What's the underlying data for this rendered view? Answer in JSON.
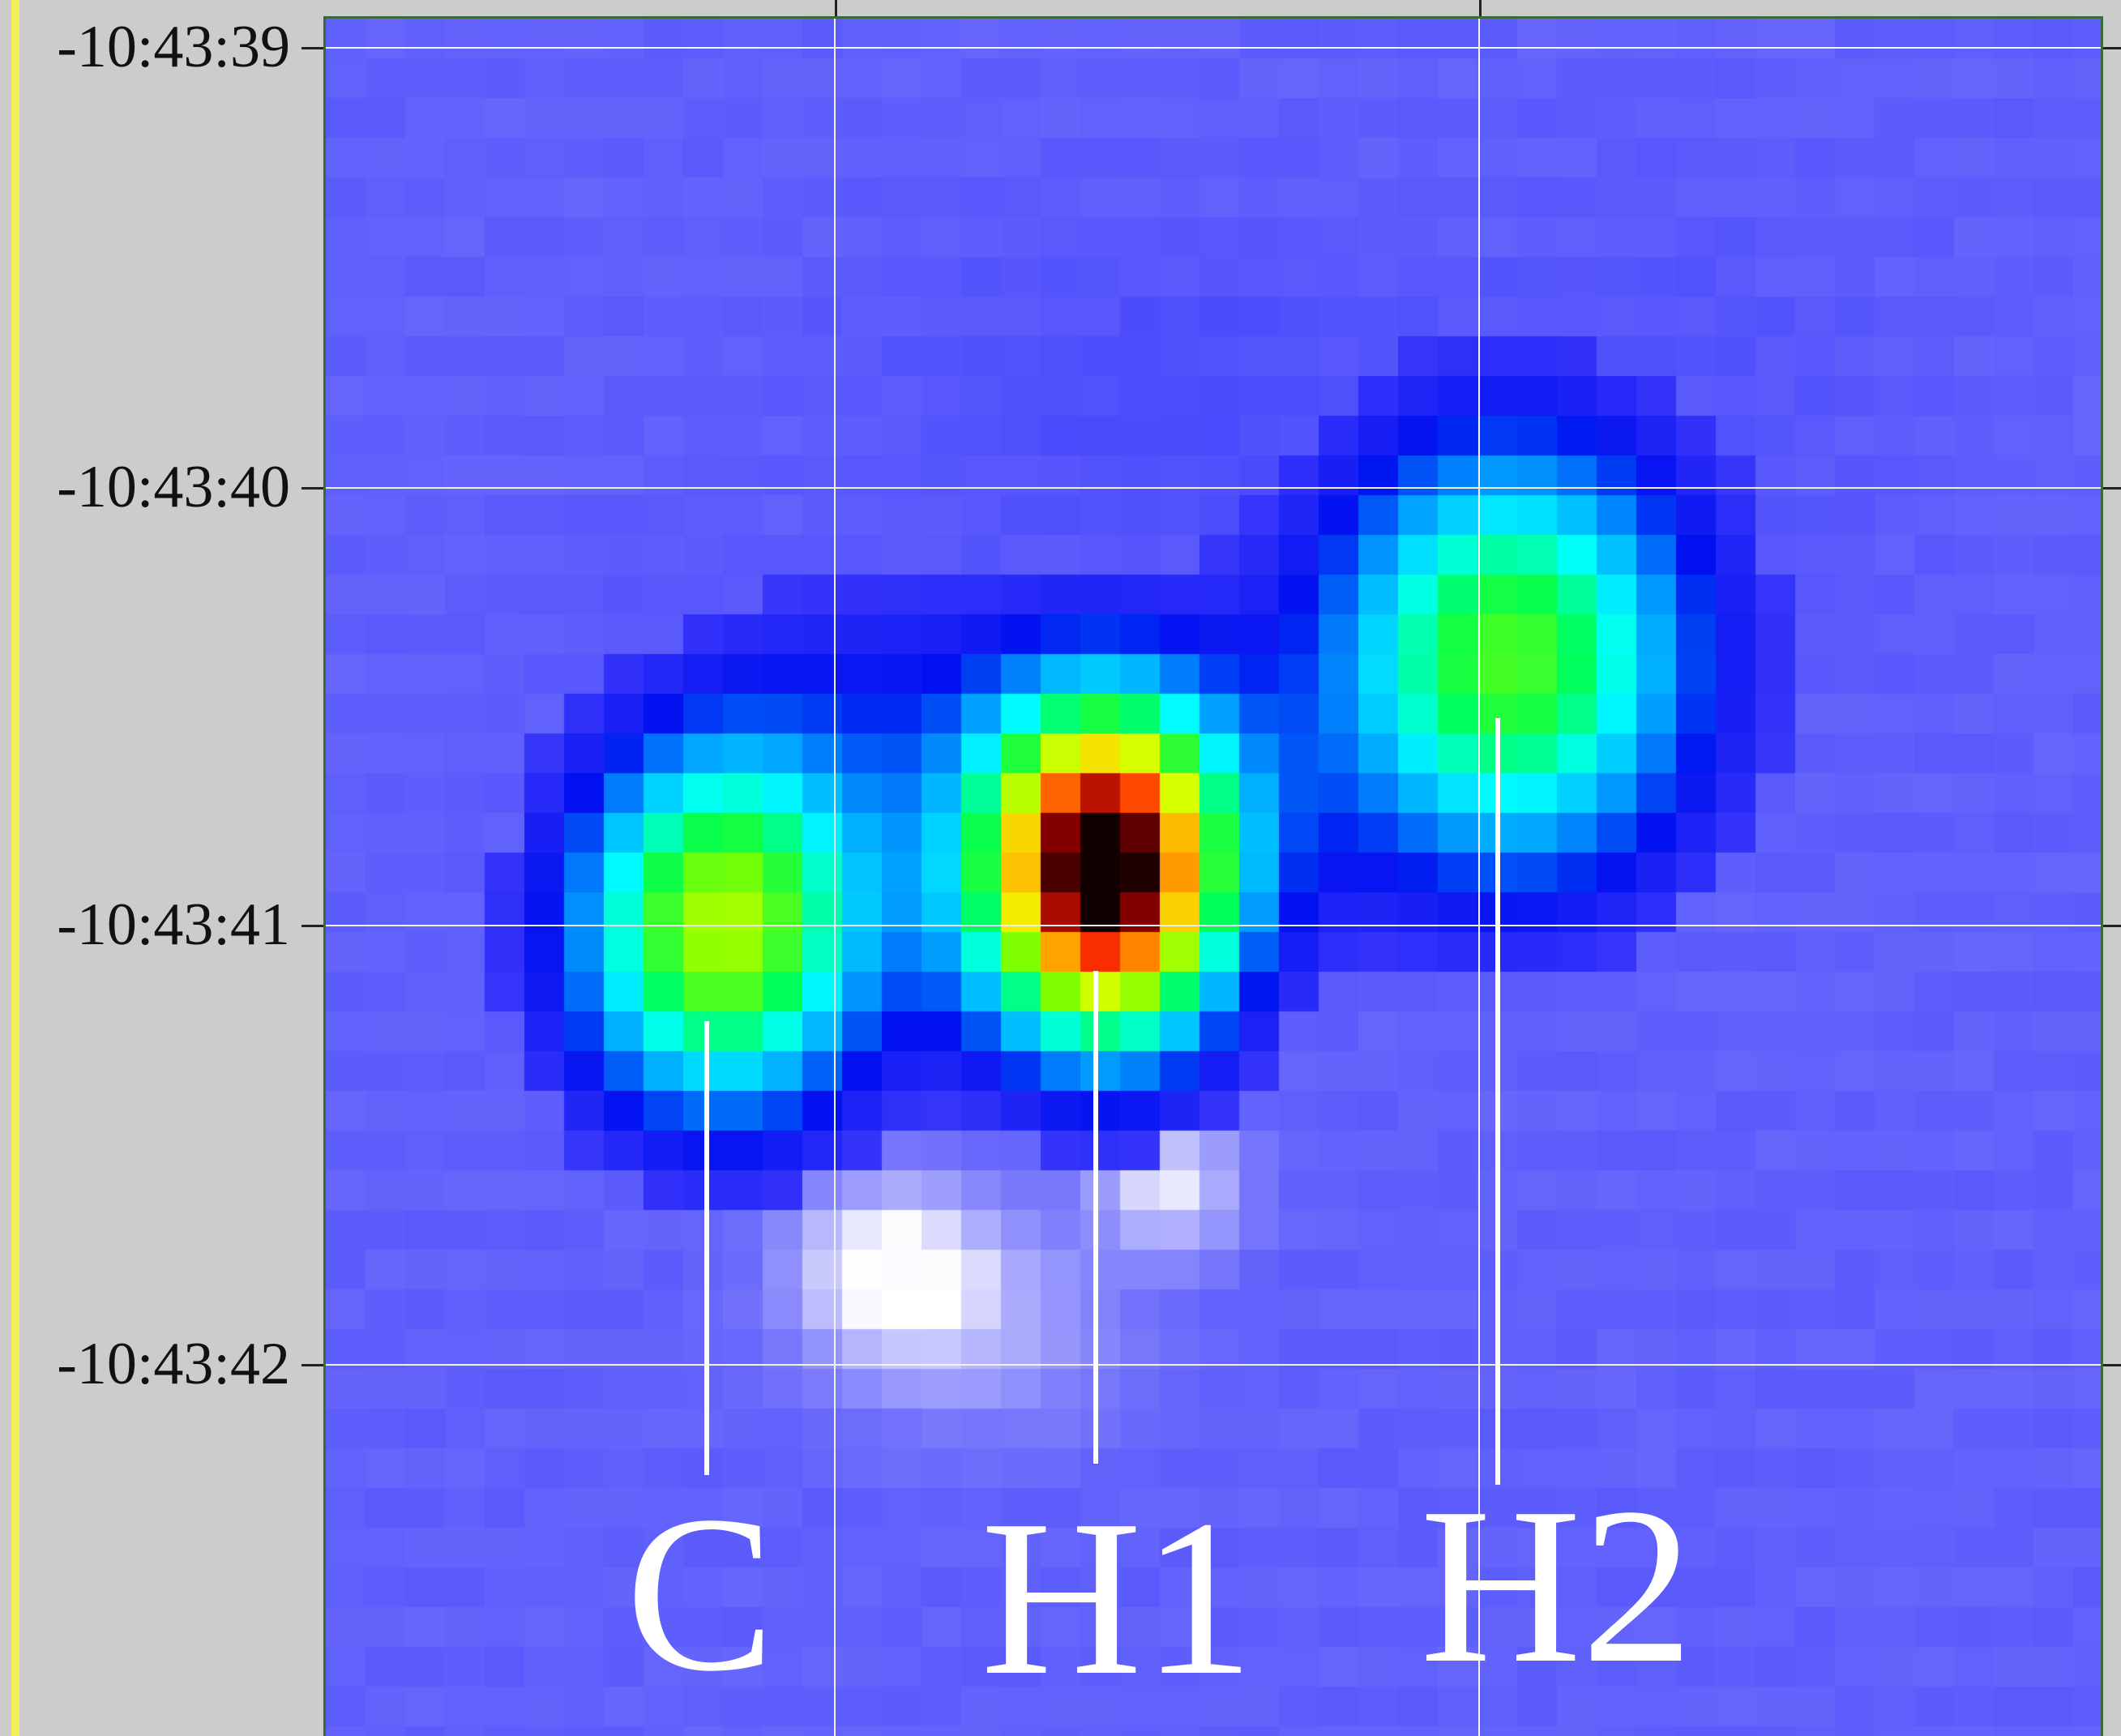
{
  "y_axis": {
    "tick_labels": [
      "-10:43:39",
      "-10:43:40",
      "-10:43:41",
      "-10:43:42"
    ]
  },
  "sources": [
    "C",
    "H1",
    "H2"
  ],
  "colormap": {
    "background": "#6060fc",
    "grid": "#f2f2f2",
    "label_color": "#ffffff",
    "frame_color": "#3a6a3a"
  }
}
